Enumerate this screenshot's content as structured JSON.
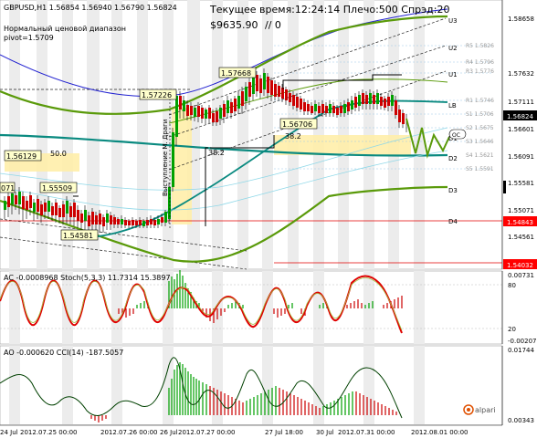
{
  "main_header": {
    "symbol_ohlc": "GBPUSD,H1  1.56854 1.56940 1.56790 1.56824",
    "range_label": "Нормальный ценовой диапазон",
    "pivot_label": "pivot=1.5709",
    "time_label": "Текущее время:12:24:14 Плечо:500  Спрэд:20",
    "balance": "$9635.90",
    "marks": "// 0"
  },
  "price_axis": [
    {
      "label": "1.58658",
      "y": 1.58658
    },
    {
      "label": "1.57632",
      "y": 1.57632
    },
    {
      "label": "1.57111",
      "y": 1.57111
    },
    {
      "label": "1.56601",
      "y": 1.56601
    },
    {
      "label": "1.56091",
      "y": 1.56091
    },
    {
      "label": "1.55581",
      "y": 1.55581
    },
    {
      "label": "1.55071",
      "y": 1.55071
    },
    {
      "label": "1.54561",
      "y": 1.54561
    },
    {
      "label": "1.54032",
      "y": 1.54032
    }
  ],
  "current_price_tag": {
    "label": "1.56824",
    "value": 1.56824,
    "color": "#000000"
  },
  "red_price_tag": {
    "label": "1.54843",
    "value": 1.54843,
    "color": "#ff0000"
  },
  "price_tags": [
    {
      "label": "1.57668"
    },
    {
      "label": "1.57226"
    },
    {
      "label": "1.56706"
    },
    {
      "label": "1.56129"
    },
    {
      "label": "1.55509"
    },
    {
      "label": "1.54581"
    },
    {
      "label": "50.0"
    },
    {
      "label": "38.2"
    },
    {
      "label": "38.2"
    },
    {
      "label": "071"
    }
  ],
  "levels": {
    "u3": "U3",
    "u2": "U2",
    "u1": "U1",
    "lb": "LB",
    "d1": "D1",
    "d2": "D2",
    "d3": "D3",
    "d4": "D4",
    "oc": "OC",
    "r5": "R5 1.5826",
    "r4": "R4 1.5796",
    "r3": "R3 1.5776",
    "r1": "R1 1.5746",
    "s1": "S1 1.5706",
    "s2": "S2 1.5675",
    "s3": "S3 1.5646",
    "s4": "S4 1.5621",
    "s5": "S5 1.5591"
  },
  "vertical_annotation": "Выступление М. Драги",
  "ac_panel": {
    "header": "AC -0.0008968  Stoch(5,3,3) 11.7314 15.3897",
    "axis": [
      "0.00731",
      "80",
      "20",
      "-0.00207"
    ]
  },
  "ao_panel": {
    "header": "AO -0.000620  CCI(14) -187.5057",
    "axis": [
      "0.01744",
      "0.00343"
    ]
  },
  "time_axis": [
    "24 Jul",
    "2012.07.25 00:00",
    "2012.07.26 00:00",
    "26 Jul",
    "2012.07.27 00:00",
    "27 Jul 18:00",
    "30 Jul",
    "2012.07.31 00:00",
    "2012.08.01 00:00"
  ],
  "broker_logo": "alpari",
  "colors": {
    "bullish_candle": "#00a000",
    "bearish_candle": "#cc0000",
    "green_envelope": "#5a9a0a",
    "teal_ma": "#0a8a80",
    "blue_band": "#2020d0",
    "red_line": "#e00000",
    "shade": "#ffeeaa"
  }
}
